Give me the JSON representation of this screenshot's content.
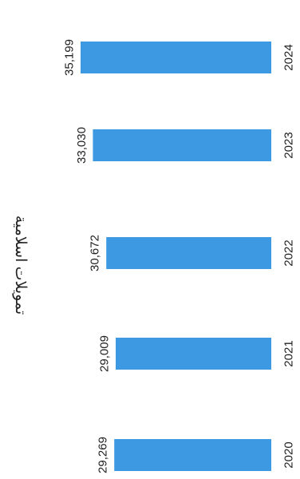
{
  "chart_data": {
    "type": "bar",
    "title": "تمويلات اسلامية",
    "categories": [
      "2020",
      "2021",
      "2022",
      "2023",
      "2024"
    ],
    "values": [
      29269,
      29009,
      30672,
      33030,
      35199
    ],
    "value_labels": [
      "29,269",
      "29,009",
      "30,672",
      "33,030",
      "35,199"
    ],
    "orientation": "rotated 90° clockwise",
    "bar_color": "#3d9ae2",
    "grid": false,
    "legend": "none"
  }
}
